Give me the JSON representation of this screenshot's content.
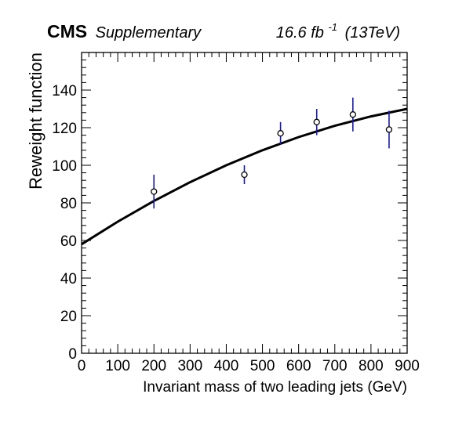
{
  "header": {
    "experiment": "CMS",
    "label": "Supplementary",
    "luminosity": "16.6 fb",
    "luminosity_exp": "-1",
    "energy": "(13TeV)"
  },
  "chart_data": {
    "type": "scatter",
    "xlabel": "Invariant mass of two leading jets (GeV)",
    "ylabel": "Reweight function",
    "xlim": [
      0,
      900
    ],
    "ylim": [
      0,
      160
    ],
    "x_ticks": [
      0,
      100,
      200,
      300,
      400,
      500,
      600,
      700,
      800,
      900
    ],
    "y_ticks": [
      0,
      20,
      40,
      60,
      80,
      100,
      120,
      140
    ],
    "x_minor_step": 20,
    "y_minor_step": 4,
    "grid": false,
    "series": [
      {
        "kind": "points_with_errors",
        "marker": "open-circle",
        "error_color": "#1a1aa6",
        "points": [
          {
            "x": 200,
            "y": 86,
            "err_low": 9,
            "err_high": 9
          },
          {
            "x": 450,
            "y": 95,
            "err_low": 5,
            "err_high": 5
          },
          {
            "x": 550,
            "y": 117,
            "err_low": 6,
            "err_high": 6
          },
          {
            "x": 650,
            "y": 123,
            "err_low": 7,
            "err_high": 7
          },
          {
            "x": 750,
            "y": 127,
            "err_low": 9,
            "err_high": 9
          },
          {
            "x": 850,
            "y": 119,
            "err_low": 10,
            "err_high": 10
          }
        ]
      },
      {
        "kind": "fit_curve",
        "color": "#000000",
        "x": [
          0,
          100,
          200,
          300,
          400,
          500,
          600,
          700,
          800,
          900
        ],
        "y": [
          58,
          70,
          81,
          91,
          100,
          108,
          115,
          121,
          126,
          130
        ]
      }
    ]
  }
}
